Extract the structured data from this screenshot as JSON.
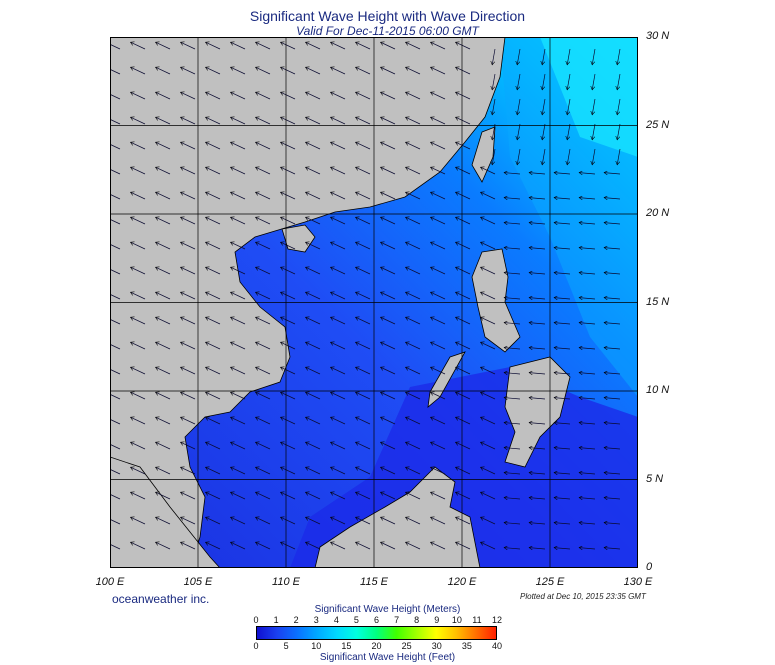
{
  "title": "Significant Wave Height with Wave Direction",
  "subtitle": "Valid For Dec-11-2015 06:00 GMT",
  "lat_labels": [
    "30 N",
    "25 N",
    "20 N",
    "15 N",
    "10 N",
    "5 N",
    "0"
  ],
  "lon_labels": [
    "100 E",
    "105 E",
    "110 E",
    "115 E",
    "120 E",
    "125 E",
    "130 E"
  ],
  "company": "oceanweather inc.",
  "plotted": "Plotted at Dec 10, 2015 23:35 GMT",
  "legend": {
    "meters_title": "Significant Wave Height (Meters)",
    "feet_title": "Significant Wave Height (Feet)",
    "meters_ticks": [
      "0",
      "1",
      "2",
      "3",
      "4",
      "5",
      "6",
      "7",
      "8",
      "9",
      "10",
      "11",
      "12"
    ],
    "feet_ticks": [
      "0",
      "5",
      "10",
      "15",
      "20",
      "25",
      "30",
      "35",
      "40"
    ]
  },
  "colors": {
    "land": "#c0c0c0",
    "sea_low": "#1e3cf0",
    "sea_mid": "#0a70ff",
    "sea_high": "#00e0ff",
    "grid": "#000000"
  }
}
